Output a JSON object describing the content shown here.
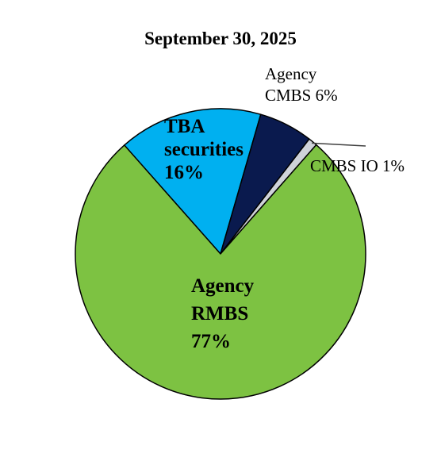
{
  "chart_data": {
    "type": "pie",
    "title": "September 30, 2025",
    "slices": [
      {
        "id": "tba",
        "label_lines": [
          "TBA",
          "securities",
          "16%"
        ],
        "value": 16,
        "color": "#00b0f0",
        "bold": true
      },
      {
        "id": "agency-cmbs",
        "label_lines": [
          "Agency",
          "CMBS 6%"
        ],
        "value": 6,
        "color": "#0a1a4e",
        "bold": false
      },
      {
        "id": "cmbs-io",
        "label_lines": [
          "CMBS IO 1%"
        ],
        "value": 1,
        "color": "#cfd3da",
        "bold": false
      },
      {
        "id": "agency-rmbs",
        "label_lines": [
          "Agency",
          "RMBS",
          "77%"
        ],
        "value": 77,
        "color": "#7dc242",
        "bold": true
      }
    ]
  }
}
